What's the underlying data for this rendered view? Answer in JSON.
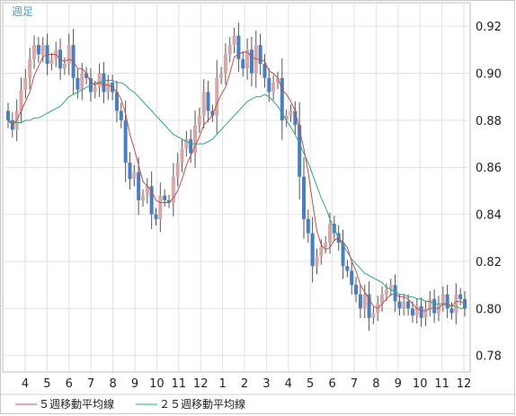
{
  "chart_data": {
    "type": "candlestick",
    "period_label": "週足",
    "x_tick_labels": [
      "4",
      "5",
      "6",
      "7",
      "8",
      "9",
      "10",
      "11",
      "12",
      "1",
      "2",
      "3",
      "4",
      "5",
      "6",
      "7",
      "8",
      "9",
      "10",
      "11",
      "12"
    ],
    "y_ticks": [
      0.78,
      0.8,
      0.82,
      0.84,
      0.86,
      0.88,
      0.9,
      0.92
    ],
    "ylim": [
      0.773,
      0.93
    ],
    "grid": true,
    "colors": {
      "up": "#d8a8a8",
      "down": "#4a7fbf",
      "ma5": "#c0504d",
      "ma25": "#2aa88a",
      "grid": "#e2e2e2"
    },
    "series": [
      {
        "name": "５週移動平均線",
        "type": "line",
        "color": "#c0504d"
      },
      {
        "name": "２５週移動平均線",
        "type": "line",
        "color": "#2aa88a"
      }
    ],
    "closes": [
      0.88,
      0.876,
      0.884,
      0.893,
      0.898,
      0.906,
      0.912,
      0.908,
      0.912,
      0.904,
      0.906,
      0.91,
      0.902,
      0.904,
      0.912,
      0.898,
      0.893,
      0.9,
      0.898,
      0.892,
      0.894,
      0.9,
      0.892,
      0.896,
      0.892,
      0.884,
      0.88,
      0.862,
      0.855,
      0.858,
      0.846,
      0.848,
      0.852,
      0.84,
      0.838,
      0.848,
      0.846,
      0.845,
      0.856,
      0.862,
      0.868,
      0.872,
      0.866,
      0.878,
      0.882,
      0.892,
      0.884,
      0.882,
      0.898,
      0.9,
      0.908,
      0.912,
      0.916,
      0.906,
      0.902,
      0.91,
      0.9,
      0.912,
      0.904,
      0.898,
      0.892,
      0.896,
      0.898,
      0.88,
      0.882,
      0.884,
      0.878,
      0.856,
      0.838,
      0.832,
      0.818,
      0.822,
      0.826,
      0.828,
      0.836,
      0.832,
      0.828,
      0.818,
      0.816,
      0.81,
      0.806,
      0.8,
      0.806,
      0.796,
      0.798,
      0.802,
      0.806,
      0.808,
      0.81,
      0.803,
      0.8,
      0.803,
      0.8,
      0.797,
      0.801,
      0.796,
      0.8,
      0.804,
      0.798,
      0.802,
      0.806,
      0.8,
      0.798,
      0.806,
      0.804,
      0.8
    ],
    "ma5": [
      0.88,
      0.878,
      0.88,
      0.884,
      0.888,
      0.892,
      0.899,
      0.903,
      0.907,
      0.908,
      0.908,
      0.908,
      0.906,
      0.905,
      0.906,
      0.905,
      0.902,
      0.902,
      0.9,
      0.896,
      0.895,
      0.896,
      0.895,
      0.895,
      0.894,
      0.892,
      0.889,
      0.883,
      0.874,
      0.868,
      0.861,
      0.854,
      0.852,
      0.85,
      0.846,
      0.845,
      0.845,
      0.845,
      0.847,
      0.85,
      0.855,
      0.861,
      0.865,
      0.869,
      0.873,
      0.878,
      0.88,
      0.882,
      0.887,
      0.891,
      0.894,
      0.9,
      0.907,
      0.908,
      0.909,
      0.909,
      0.907,
      0.906,
      0.906,
      0.905,
      0.901,
      0.9,
      0.898,
      0.893,
      0.891,
      0.888,
      0.884,
      0.876,
      0.868,
      0.858,
      0.845,
      0.833,
      0.827,
      0.825,
      0.826,
      0.829,
      0.83,
      0.828,
      0.826,
      0.82,
      0.816,
      0.81,
      0.807,
      0.804,
      0.801,
      0.8,
      0.802,
      0.804,
      0.806,
      0.806,
      0.805,
      0.805,
      0.804,
      0.802,
      0.8,
      0.799,
      0.799,
      0.8,
      0.8,
      0.8,
      0.802,
      0.802,
      0.801,
      0.803,
      0.803,
      0.802
    ],
    "ma25": [
      0.88,
      0.879,
      0.879,
      0.879,
      0.88,
      0.88,
      0.881,
      0.881,
      0.882,
      0.883,
      0.884,
      0.885,
      0.886,
      0.888,
      0.89,
      0.891,
      0.892,
      0.893,
      0.894,
      0.895,
      0.896,
      0.896,
      0.897,
      0.897,
      0.897,
      0.896,
      0.896,
      0.895,
      0.893,
      0.892,
      0.89,
      0.888,
      0.886,
      0.884,
      0.882,
      0.88,
      0.878,
      0.876,
      0.874,
      0.873,
      0.872,
      0.871,
      0.87,
      0.87,
      0.87,
      0.87,
      0.871,
      0.872,
      0.874,
      0.876,
      0.878,
      0.88,
      0.882,
      0.884,
      0.886,
      0.888,
      0.889,
      0.89,
      0.89,
      0.891,
      0.89,
      0.888,
      0.886,
      0.883,
      0.88,
      0.877,
      0.874,
      0.87,
      0.866,
      0.862,
      0.857,
      0.852,
      0.847,
      0.843,
      0.838,
      0.834,
      0.83,
      0.827,
      0.824,
      0.821,
      0.819,
      0.817,
      0.815,
      0.814,
      0.813,
      0.812,
      0.811,
      0.809,
      0.808,
      0.807,
      0.806,
      0.806,
      0.805,
      0.805,
      0.804,
      0.804,
      0.803,
      0.803,
      0.802,
      0.802,
      0.802,
      0.801,
      0.801,
      0.801,
      0.8,
      0.8
    ]
  }
}
